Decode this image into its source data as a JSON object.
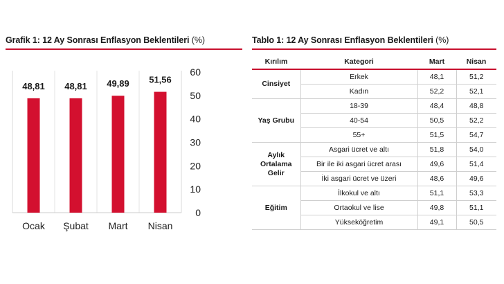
{
  "chart_title": {
    "text": "Grafik 1: 12 Ay Sonrası Enflasyon Beklentileri",
    "unit": "(%)"
  },
  "table_title": {
    "text": "Tablo 1: 12 Ay Sonrası Enflasyon Beklentileri",
    "unit": "(%)"
  },
  "colors": {
    "bar": "#d3102f",
    "accent": "#c8102e",
    "grid": "#e0e0e0"
  },
  "chart_data": {
    "type": "bar",
    "title": "Grafik 1: 12 Ay Sonrası Enflasyon Beklentileri (%)",
    "categories": [
      "Ocak",
      "Şubat",
      "Mart",
      "Nisan"
    ],
    "values": [
      48.81,
      48.81,
      49.89,
      51.56
    ],
    "data_labels": [
      "48,81",
      "48,81",
      "49,89",
      "51,56"
    ],
    "ylim": [
      0,
      60
    ],
    "yticks": [
      0,
      10,
      20,
      30,
      40,
      50,
      60
    ],
    "y_axis_side": "right",
    "grid": "vertical separators only",
    "xlabel": "",
    "ylabel": ""
  },
  "table": {
    "headers": [
      "Kırılım",
      "Kategori",
      "Mart",
      "Nisan"
    ],
    "groups": [
      {
        "name": "Cinsiyet",
        "rows": [
          {
            "kategori": "Erkek",
            "mart": "48,1",
            "nisan": "51,2"
          },
          {
            "kategori": "Kadın",
            "mart": "52,2",
            "nisan": "52,1"
          }
        ]
      },
      {
        "name": "Yaş Grubu",
        "rows": [
          {
            "kategori": "18-39",
            "mart": "48,4",
            "nisan": "48,8"
          },
          {
            "kategori": "40-54",
            "mart": "50,5",
            "nisan": "52,2"
          },
          {
            "kategori": "55+",
            "mart": "51,5",
            "nisan": "54,7"
          }
        ]
      },
      {
        "name": "Aylık Ortalama Gelir",
        "rows": [
          {
            "kategori": "Asgari ücret ve altı",
            "mart": "51,8",
            "nisan": "54,0"
          },
          {
            "kategori": "Bir ile iki asgari ücret arası",
            "mart": "49,6",
            "nisan": "51,4"
          },
          {
            "kategori": "İki asgari ücret ve üzeri",
            "mart": "48,6",
            "nisan": "49,6"
          }
        ]
      },
      {
        "name": "Eğitim",
        "rows": [
          {
            "kategori": "İlkokul ve altı",
            "mart": "51,1",
            "nisan": "53,3"
          },
          {
            "kategori": "Ortaokul ve lise",
            "mart": "49,8",
            "nisan": "51,1"
          },
          {
            "kategori": "Yükseköğretim",
            "mart": "49,1",
            "nisan": "50,5"
          }
        ]
      }
    ]
  }
}
